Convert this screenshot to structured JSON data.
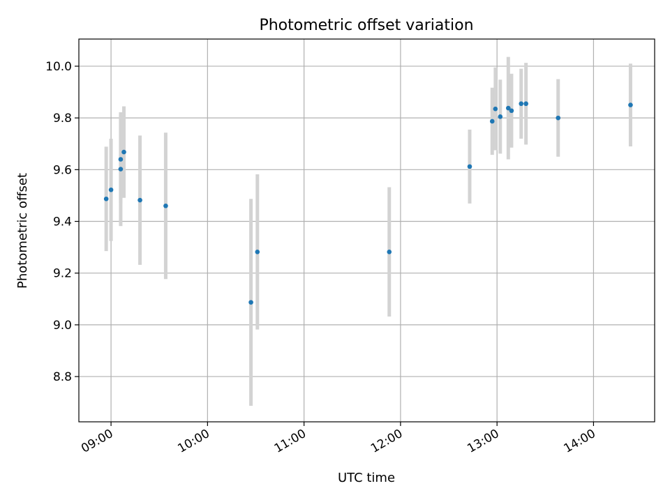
{
  "chart_data": {
    "type": "scatter",
    "title": "Photometric offset variation",
    "xlabel": "UTC time",
    "ylabel": "Photometric offset",
    "x_tick_labels": [
      "09:00",
      "10:00",
      "11:00",
      "12:00",
      "13:00",
      "14:00"
    ],
    "y_tick_labels": [
      "8.8",
      "9.0",
      "9.2",
      "9.4",
      "9.6",
      "9.8",
      "10.0"
    ],
    "ylim": [
      8.625,
      10.105
    ],
    "xlim": [
      "08:40",
      "14:38"
    ],
    "grid": true,
    "point_color": "#1f77b4",
    "errorbar_color": "#d3d3d3",
    "series": [
      {
        "points": [
          {
            "x": "08:57",
            "y": 9.487,
            "yerr": 0.202
          },
          {
            "x": "09:00",
            "y": 9.522,
            "yerr": 0.198
          },
          {
            "x": "09:06",
            "y": 9.64,
            "yerr": 0.17
          },
          {
            "x": "09:06",
            "y": 9.602,
            "yerr": 0.22
          },
          {
            "x": "09:08",
            "y": 9.668,
            "yerr": 0.177
          },
          {
            "x": "09:18",
            "y": 9.482,
            "yerr": 0.25
          },
          {
            "x": "09:34",
            "y": 9.46,
            "yerr": 0.283
          },
          {
            "x": "10:27",
            "y": 9.087,
            "yerr": 0.4
          },
          {
            "x": "10:31",
            "y": 9.282,
            "yerr": 0.3
          },
          {
            "x": "11:53",
            "y": 9.282,
            "yerr": 0.25
          },
          {
            "x": "12:43",
            "y": 9.612,
            "yerr": 0.143
          },
          {
            "x": "12:57",
            "y": 9.787,
            "yerr": 0.13
          },
          {
            "x": "12:59",
            "y": 9.835,
            "yerr": 0.16
          },
          {
            "x": "13:02",
            "y": 9.805,
            "yerr": 0.143
          },
          {
            "x": "13:07",
            "y": 9.838,
            "yerr": 0.198
          },
          {
            "x": "13:09",
            "y": 9.828,
            "yerr": 0.143
          },
          {
            "x": "13:15",
            "y": 9.855,
            "yerr": 0.135
          },
          {
            "x": "13:18",
            "y": 9.855,
            "yerr": 0.158
          },
          {
            "x": "13:38",
            "y": 9.8,
            "yerr": 0.15
          },
          {
            "x": "14:23",
            "y": 9.85,
            "yerr": 0.16
          }
        ]
      }
    ]
  }
}
